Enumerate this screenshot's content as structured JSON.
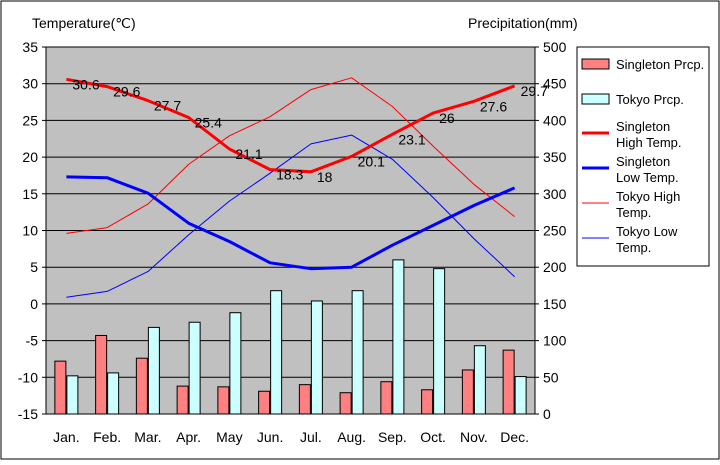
{
  "chart_data": {
    "type": "bar",
    "left_axis_title": "Temperature(℃)",
    "right_axis_title": "Precipitation(mm)",
    "categories": [
      "Jan.",
      "Feb.",
      "Mar.",
      "Apr.",
      "May",
      "Jun.",
      "Jul.",
      "Aug.",
      "Sep.",
      "Oct.",
      "Nov.",
      "Dec."
    ],
    "left_ylim": [
      -15,
      35
    ],
    "left_ticks": [
      35,
      30,
      25,
      20,
      15,
      10,
      5,
      0,
      -5,
      -10,
      -15
    ],
    "right_ylim": [
      0,
      500
    ],
    "right_ticks": [
      500,
      450,
      400,
      350,
      300,
      250,
      200,
      150,
      100,
      50,
      0
    ],
    "grid": true,
    "legend_position": "right",
    "bar_series": [
      {
        "name": "Singleton Prcp.",
        "color": "#ff8080",
        "values": [
          72,
          107,
          76,
          38,
          37,
          31,
          40,
          29,
          44,
          33,
          60,
          87
        ]
      },
      {
        "name": "Tokyo Prcp.",
        "color": "#ccffff",
        "values": [
          52,
          56,
          118,
          125,
          138,
          168,
          154,
          168,
          210,
          198,
          93,
          51
        ]
      }
    ],
    "line_series": [
      {
        "name": "Singleton High Temp.",
        "color": "#ff0000",
        "width": 3,
        "values": [
          30.6,
          29.6,
          27.7,
          25.4,
          21.1,
          18.3,
          18,
          20.1,
          23.1,
          26,
          27.6,
          29.7
        ],
        "labels": [
          "30.6",
          "29.6",
          "27.7",
          "25.4",
          "21.1",
          "18.3",
          "18",
          "20.1",
          "23.1",
          "26",
          "27.6",
          "29.7"
        ]
      },
      {
        "name": "Singleton Low Temp.",
        "color": "#0000ff",
        "width": 3,
        "values": [
          17.3,
          17.2,
          15.1,
          11.0,
          8.5,
          5.6,
          4.8,
          5.0,
          8.0,
          10.7,
          13.4,
          15.8
        ]
      },
      {
        "name": "Tokyo High Temp.",
        "color": "#ff0000",
        "width": 1,
        "values": [
          9.6,
          10.4,
          13.6,
          19.0,
          22.9,
          25.5,
          29.2,
          30.8,
          26.9,
          21.5,
          16.3,
          11.9
        ]
      },
      {
        "name": "Tokyo Low Temp.",
        "color": "#0000ff",
        "width": 1,
        "values": [
          0.9,
          1.7,
          4.4,
          9.4,
          14.0,
          17.8,
          21.8,
          23.0,
          19.7,
          14.5,
          8.9,
          3.7
        ]
      }
    ],
    "legend": [
      {
        "kind": "bar",
        "series": 0,
        "lines": [
          "Singleton Prcp."
        ]
      },
      {
        "kind": "bar",
        "series": 1,
        "lines": [
          "Tokyo Prcp."
        ]
      },
      {
        "kind": "line",
        "series": 0,
        "lines": [
          "Singleton",
          "High Temp."
        ]
      },
      {
        "kind": "line",
        "series": 1,
        "lines": [
          "Singleton",
          "Low Temp."
        ]
      },
      {
        "kind": "line",
        "series": 2,
        "lines": [
          "Tokyo High",
          "Temp."
        ]
      },
      {
        "kind": "line",
        "series": 3,
        "lines": [
          "Tokyo Low",
          "Temp."
        ]
      }
    ]
  }
}
